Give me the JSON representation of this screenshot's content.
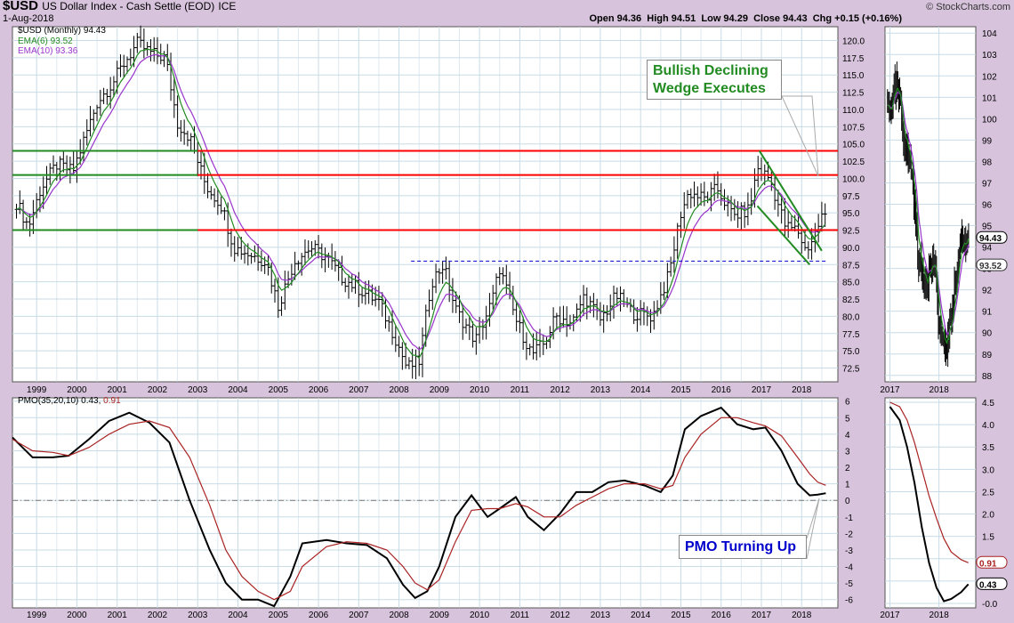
{
  "header": {
    "symbol": "$USD",
    "name": "US Dollar Index - Cash Settle (EOD)",
    "exchange": "ICE",
    "date": "1-Aug-2018",
    "quote": "Open 94.36  High 94.51  Low 94.29  Close 94.43  Chg +0.15 (+0.16%)",
    "watermark": "© StockCharts.com"
  },
  "legend": {
    "price": "$USD (Monthly) 94.43",
    "ema6": "EMA(6) 93.52",
    "ema10": "EMA(10) 93.36",
    "pmo_prefix": "PMO(35,20,10) 0.43,",
    "pmo_signal": "0.91"
  },
  "annotations": {
    "wedge_line1": "Bullish Declining",
    "wedge_line2": "Wedge Executes",
    "pmo": "PMO Turning Up"
  },
  "colors": {
    "price_bar": "#000000",
    "ema6": "#228b22",
    "ema10": "#9933cc",
    "resistance": "#ff0000",
    "support": "#228b22",
    "neckline": "#0000cc",
    "pmo": "#000000",
    "pmo_signal": "#aa2222",
    "grid": "#c8dbe6",
    "panel_bg": "#ffffff"
  },
  "chart_data": [
    {
      "type": "ohlc",
      "panel": "price-monthly",
      "title": "$USD (Monthly) 94.43",
      "x_tick_labels": [
        "1999",
        "2000",
        "2001",
        "2002",
        "2003",
        "2004",
        "2005",
        "2006",
        "2007",
        "2008",
        "2009",
        "2010",
        "2011",
        "2012",
        "2013",
        "2014",
        "2015",
        "2016",
        "2017",
        "2018"
      ],
      "y_tick_labels": [
        "72.5",
        "75.0",
        "77.5",
        "80.0",
        "82.5",
        "85.0",
        "87.5",
        "90.0",
        "92.5",
        "95.0",
        "97.5",
        "100.0",
        "102.5",
        "105.0",
        "107.5",
        "110.0",
        "112.5",
        "115.0",
        "117.5",
        "120.0"
      ],
      "ylim": [
        70.5,
        122.0
      ],
      "xlim": [
        1998.4,
        2018.9
      ],
      "anchors_close": [
        [
          1998.5,
          96.5
        ],
        [
          1998.8,
          93.0
        ],
        [
          1999.1,
          98.5
        ],
        [
          1999.5,
          102.0
        ],
        [
          1999.9,
          101.0
        ],
        [
          2000.5,
          111.0
        ],
        [
          2000.9,
          114.0
        ],
        [
          2001.2,
          117.0
        ],
        [
          2001.5,
          119.5
        ],
        [
          2001.9,
          118.0
        ],
        [
          2002.2,
          117.5
        ],
        [
          2002.5,
          108.0
        ],
        [
          2002.8,
          106.0
        ],
        [
          2003.2,
          99.0
        ],
        [
          2003.6,
          96.0
        ],
        [
          2003.9,
          90.0
        ],
        [
          2004.3,
          89.0
        ],
        [
          2004.7,
          88.0
        ],
        [
          2005.0,
          81.5
        ],
        [
          2005.4,
          88.0
        ],
        [
          2005.8,
          90.0
        ],
        [
          2006.2,
          88.5
        ],
        [
          2006.6,
          85.5
        ],
        [
          2007.0,
          84.0
        ],
        [
          2007.5,
          82.0
        ],
        [
          2007.9,
          77.0
        ],
        [
          2008.2,
          72.5
        ],
        [
          2008.5,
          73.5
        ],
        [
          2008.8,
          85.0
        ],
        [
          2009.1,
          87.5
        ],
        [
          2009.4,
          81.0
        ],
        [
          2009.9,
          76.5
        ],
        [
          2010.3,
          82.0
        ],
        [
          2010.5,
          87.0
        ],
        [
          2010.9,
          79.5
        ],
        [
          2011.3,
          74.5
        ],
        [
          2011.6,
          76.0
        ],
        [
          2011.9,
          80.0
        ],
        [
          2012.3,
          79.0
        ],
        [
          2012.6,
          83.0
        ],
        [
          2013.0,
          79.5
        ],
        [
          2013.4,
          83.0
        ],
        [
          2013.8,
          80.5
        ],
        [
          2014.3,
          80.0
        ],
        [
          2014.7,
          86.0
        ],
        [
          2015.0,
          95.0
        ],
        [
          2015.2,
          98.0
        ],
        [
          2015.6,
          97.0
        ],
        [
          2015.9,
          98.5
        ],
        [
          2016.3,
          94.5
        ],
        [
          2016.7,
          95.5
        ],
        [
          2016.9,
          101.5
        ],
        [
          2017.2,
          100.0
        ],
        [
          2017.6,
          93.0
        ],
        [
          2017.9,
          92.5
        ],
        [
          2018.1,
          89.5
        ],
        [
          2018.3,
          91.5
        ],
        [
          2018.5,
          94.5
        ],
        [
          2018.6,
          94.4
        ]
      ],
      "resistance_lines": [
        103.5,
        100.5,
        92.5
      ],
      "support_lines": [
        104.0,
        100.5,
        92.5
      ],
      "horizontal_lines": [
        {
          "color": "green",
          "y": 104.0,
          "x": [
            1998.4,
            2003.0
          ]
        },
        {
          "color": "green",
          "y": 100.5,
          "x": [
            1998.4,
            2003.0
          ]
        },
        {
          "color": "green",
          "y": 92.5,
          "x": [
            1998.4,
            2018.9
          ]
        },
        {
          "color": "red",
          "y": 104.0,
          "x": [
            2003.0,
            2018.9
          ]
        },
        {
          "color": "red",
          "y": 100.5,
          "x": [
            2003.0,
            2018.9
          ]
        },
        {
          "color": "red",
          "y": 92.5,
          "x": [
            2003.0,
            2018.9
          ]
        }
      ],
      "neckline": {
        "y": 88.0,
        "x": [
          2008.3,
          2018.6
        ]
      },
      "wedge": {
        "upper": [
          [
            2016.95,
            104.0
          ],
          [
            2018.5,
            89.5
          ]
        ],
        "lower": [
          [
            2016.9,
            96.0
          ],
          [
            2018.2,
            87.5
          ]
        ]
      },
      "ema6_last": 93.52,
      "ema10_last": 93.36
    },
    {
      "type": "ohlc",
      "panel": "price-weekly",
      "x_tick_labels": [
        "2017",
        "2018"
      ],
      "y_tick_labels": [
        "88",
        "89",
        "90",
        "91",
        "92",
        "93",
        "94",
        "95",
        "96",
        "97",
        "98",
        "99",
        "100",
        "101",
        "102",
        "103",
        "104"
      ],
      "ylim": [
        88.0,
        104.0
      ],
      "value_labels": [
        "94.43",
        "93.52"
      ],
      "anchors_close": [
        [
          2017.0,
          100.5
        ],
        [
          2017.15,
          101.5
        ],
        [
          2017.3,
          99.0
        ],
        [
          2017.45,
          97.5
        ],
        [
          2017.6,
          93.0
        ],
        [
          2017.75,
          92.5
        ],
        [
          2017.9,
          93.5
        ],
        [
          2018.0,
          90.5
        ],
        [
          2018.1,
          89.0
        ],
        [
          2018.2,
          90.0
        ],
        [
          2018.35,
          92.5
        ],
        [
          2018.45,
          94.5
        ],
        [
          2018.55,
          94.5
        ],
        [
          2018.6,
          94.4
        ]
      ]
    },
    {
      "type": "line",
      "panel": "pmo-monthly",
      "title": "PMO(35,20,10) 0.43, 0.91",
      "series": [
        {
          "name": "PMO(35,20,10)",
          "color": "black",
          "values_xy": [
            [
              1998.4,
              3.8
            ],
            [
              1998.9,
              2.6
            ],
            [
              1999.4,
              2.6
            ],
            [
              1999.8,
              2.7
            ],
            [
              2000.3,
              3.7
            ],
            [
              2000.8,
              4.8
            ],
            [
              2001.3,
              5.3
            ],
            [
              2001.8,
              4.7
            ],
            [
              2002.3,
              3.5
            ],
            [
              2002.8,
              0.0
            ],
            [
              2003.3,
              -3.0
            ],
            [
              2003.7,
              -5.0
            ],
            [
              2004.1,
              -6.0
            ],
            [
              2004.5,
              -6.0
            ],
            [
              2004.9,
              -6.4
            ],
            [
              2005.3,
              -4.6
            ],
            [
              2005.6,
              -2.6
            ],
            [
              2006.2,
              -2.4
            ],
            [
              2006.7,
              -2.6
            ],
            [
              2007.2,
              -2.7
            ],
            [
              2007.7,
              -3.5
            ],
            [
              2008.1,
              -5.1
            ],
            [
              2008.4,
              -5.9
            ],
            [
              2008.7,
              -5.5
            ],
            [
              2009.0,
              -4.0
            ],
            [
              2009.4,
              -1.0
            ],
            [
              2009.8,
              0.3
            ],
            [
              2010.2,
              -1.0
            ],
            [
              2010.5,
              -0.5
            ],
            [
              2010.9,
              0.2
            ],
            [
              2011.2,
              -1.0
            ],
            [
              2011.6,
              -1.8
            ],
            [
              2012.0,
              -0.8
            ],
            [
              2012.4,
              0.5
            ],
            [
              2012.8,
              0.5
            ],
            [
              2013.2,
              1.1
            ],
            [
              2013.6,
              1.2
            ],
            [
              2014.1,
              0.9
            ],
            [
              2014.5,
              0.5
            ],
            [
              2014.8,
              1.5
            ],
            [
              2015.1,
              4.3
            ],
            [
              2015.5,
              5.1
            ],
            [
              2016.0,
              5.6
            ],
            [
              2016.4,
              4.6
            ],
            [
              2016.8,
              4.3
            ],
            [
              2017.1,
              4.4
            ],
            [
              2017.5,
              3.0
            ],
            [
              2017.9,
              1.0
            ],
            [
              2018.2,
              0.3
            ],
            [
              2018.4,
              0.35
            ],
            [
              2018.6,
              0.43
            ]
          ]
        },
        {
          "name": "Signal",
          "color": "#aa2222",
          "values_xy": [
            [
              1998.4,
              3.7
            ],
            [
              1998.9,
              3.0
            ],
            [
              1999.4,
              2.9
            ],
            [
              1999.8,
              2.7
            ],
            [
              2000.3,
              3.2
            ],
            [
              2000.8,
              4.0
            ],
            [
              2001.3,
              4.6
            ],
            [
              2001.8,
              4.8
            ],
            [
              2002.3,
              4.4
            ],
            [
              2002.8,
              2.6
            ],
            [
              2003.3,
              -0.3
            ],
            [
              2003.7,
              -3.0
            ],
            [
              2004.1,
              -4.6
            ],
            [
              2004.5,
              -5.5
            ],
            [
              2004.9,
              -6.0
            ],
            [
              2005.3,
              -5.5
            ],
            [
              2005.6,
              -4.0
            ],
            [
              2006.2,
              -2.8
            ],
            [
              2006.7,
              -2.5
            ],
            [
              2007.2,
              -2.6
            ],
            [
              2007.7,
              -3.0
            ],
            [
              2008.1,
              -4.0
            ],
            [
              2008.4,
              -5.0
            ],
            [
              2008.7,
              -5.4
            ],
            [
              2009.0,
              -4.8
            ],
            [
              2009.4,
              -2.5
            ],
            [
              2009.8,
              -0.6
            ],
            [
              2010.2,
              -0.5
            ],
            [
              2010.5,
              -0.5
            ],
            [
              2010.9,
              -0.2
            ],
            [
              2011.2,
              -0.4
            ],
            [
              2011.6,
              -1.0
            ],
            [
              2012.0,
              -1.0
            ],
            [
              2012.4,
              -0.3
            ],
            [
              2012.8,
              0.2
            ],
            [
              2013.2,
              0.7
            ],
            [
              2013.6,
              1.0
            ],
            [
              2014.1,
              1.0
            ],
            [
              2014.5,
              0.7
            ],
            [
              2014.8,
              0.9
            ],
            [
              2015.1,
              2.6
            ],
            [
              2015.5,
              4.0
            ],
            [
              2016.0,
              5.0
            ],
            [
              2016.4,
              5.0
            ],
            [
              2016.8,
              4.7
            ],
            [
              2017.1,
              4.5
            ],
            [
              2017.5,
              3.9
            ],
            [
              2017.9,
              2.6
            ],
            [
              2018.2,
              1.6
            ],
            [
              2018.4,
              1.1
            ],
            [
              2018.6,
              0.91
            ]
          ]
        }
      ],
      "y_tick_labels": [
        "-6",
        "-5",
        "-4",
        "-3",
        "-2",
        "-1",
        "0",
        "1",
        "2",
        "3",
        "4",
        "5",
        "6"
      ],
      "ylim": [
        -6.5,
        6.2
      ]
    },
    {
      "type": "line",
      "panel": "pmo-weekly",
      "y_tick_labels": [
        "-0.0",
        "0.5",
        "1.0",
        "1.5",
        "2.0",
        "2.5",
        "3.0",
        "3.5",
        "4.0",
        "4.5"
      ],
      "value_labels": [
        "0.91",
        "0.43"
      ],
      "ylim": [
        -0.1,
        4.6
      ],
      "series": [
        {
          "name": "PMO",
          "color": "black",
          "values_xy": [
            [
              2017.0,
              4.4
            ],
            [
              2017.2,
              4.1
            ],
            [
              2017.35,
              3.5
            ],
            [
              2017.5,
              2.7
            ],
            [
              2017.65,
              1.7
            ],
            [
              2017.8,
              0.9
            ],
            [
              2017.95,
              0.35
            ],
            [
              2018.1,
              0.05
            ],
            [
              2018.25,
              0.1
            ],
            [
              2018.45,
              0.25
            ],
            [
              2018.6,
              0.43
            ]
          ]
        },
        {
          "name": "Signal",
          "color": "#aa2222",
          "values_xy": [
            [
              2017.0,
              4.5
            ],
            [
              2017.2,
              4.4
            ],
            [
              2017.35,
              4.1
            ],
            [
              2017.5,
              3.6
            ],
            [
              2017.65,
              3.0
            ],
            [
              2017.8,
              2.4
            ],
            [
              2017.95,
              1.9
            ],
            [
              2018.1,
              1.45
            ],
            [
              2018.25,
              1.15
            ],
            [
              2018.45,
              0.98
            ],
            [
              2018.6,
              0.91
            ]
          ]
        }
      ]
    }
  ]
}
